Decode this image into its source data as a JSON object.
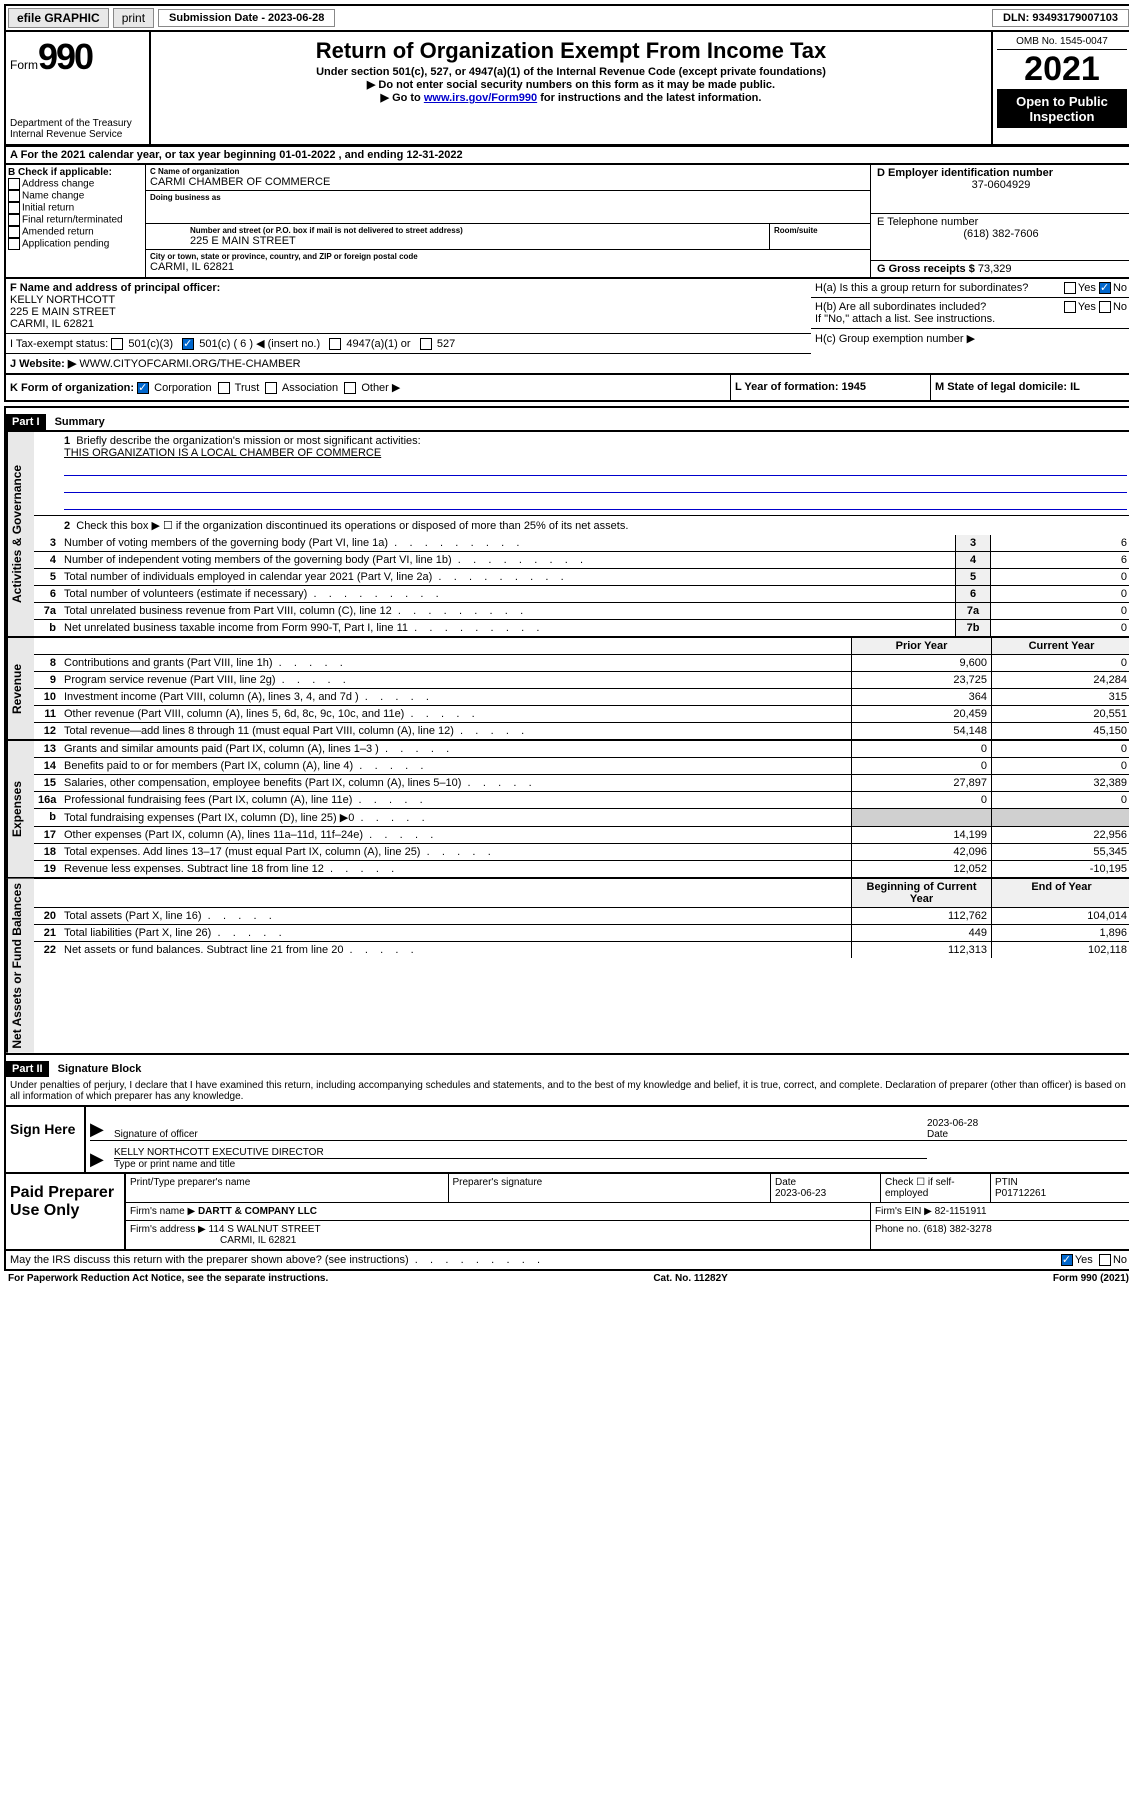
{
  "top_bar": {
    "efile": "efile GRAPHIC",
    "print": "print",
    "submission_label": "Submission Date - 2023-06-28",
    "dln_label": "DLN: 93493179007103"
  },
  "header": {
    "form_word": "Form",
    "form_num": "990",
    "title": "Return of Organization Exempt From Income Tax",
    "subtitle": "Under section 501(c), 527, or 4947(a)(1) of the Internal Revenue Code (except private foundations)",
    "note1": "▶ Do not enter social security numbers on this form as it may be made public.",
    "note2_pre": "▶ Go to ",
    "note2_link": "www.irs.gov/Form990",
    "note2_post": " for instructions and the latest information.",
    "dept1": "Department of the Treasury",
    "dept2": "Internal Revenue Service",
    "omb": "OMB No. 1545-0047",
    "year": "2021",
    "open": "Open to Public Inspection"
  },
  "line_a": "For the 2021 calendar year, or tax year beginning 01-01-2022   , and ending 12-31-2022",
  "section_b": {
    "label": "B Check if applicable:",
    "opts": [
      "Address change",
      "Name change",
      "Initial return",
      "Final return/terminated",
      "Amended return",
      "Application pending"
    ],
    "c_label": "C Name of organization",
    "c_name": "CARMI CHAMBER OF COMMERCE",
    "dba_label": "Doing business as",
    "addr_label": "Number and street (or P.O. box if mail is not delivered to street address)",
    "room_label": "Room/suite",
    "addr": "225 E MAIN STREET",
    "city_label": "City or town, state or province, country, and ZIP or foreign postal code",
    "city": "CARMI, IL  62821",
    "d_label": "D Employer identification number",
    "d_val": "37-0604929",
    "e_label": "E Telephone number",
    "e_val": "(618) 382-7606",
    "g_label": "G Gross receipts $",
    "g_val": "73,329"
  },
  "fij": {
    "f_label": "F  Name and address of principal officer:",
    "f_name": "KELLY NORTHCOTT",
    "f_addr1": "225 E MAIN STREET",
    "f_addr2": "CARMI, IL  62821",
    "i_label": "I  Tax-exempt status:",
    "i_501c3": "501(c)(3)",
    "i_501c": "501(c) ( 6 ) ◀ (insert no.)",
    "i_4947": "4947(a)(1) or",
    "i_527": "527",
    "j_label": "J  Website: ▶",
    "j_val": "WWW.CITYOFCARMI.ORG/THE-CHAMBER",
    "ha_label": "H(a)  Is this a group return for subordinates?",
    "hb_label": "H(b)  Are all subordinates included?",
    "hb_note": "If \"No,\" attach a list. See instructions.",
    "hc_label": "H(c)  Group exemption number ▶",
    "yes": "Yes",
    "no": "No"
  },
  "kl": {
    "k_label": "K Form of organization:",
    "k_corp": "Corporation",
    "k_trust": "Trust",
    "k_assoc": "Association",
    "k_other": "Other ▶",
    "l_label": "L Year of formation: 1945",
    "m_label": "M State of legal domicile: IL"
  },
  "part1": {
    "label": "Part I",
    "title": "Summary"
  },
  "gov": {
    "tab": "Activities & Governance",
    "l1": "Briefly describe the organization's mission or most significant activities:",
    "l1v": "THIS ORGANIZATION IS A LOCAL CHAMBER OF COMMERCE",
    "l2": "Check this box ▶ ☐  if the organization discontinued its operations or disposed of more than 25% of its net assets.",
    "rows": [
      {
        "n": "3",
        "t": "Number of voting members of the governing body (Part VI, line 1a)",
        "ln": "3",
        "v": "6"
      },
      {
        "n": "4",
        "t": "Number of independent voting members of the governing body (Part VI, line 1b)",
        "ln": "4",
        "v": "6"
      },
      {
        "n": "5",
        "t": "Total number of individuals employed in calendar year 2021 (Part V, line 2a)",
        "ln": "5",
        "v": "0"
      },
      {
        "n": "6",
        "t": "Total number of volunteers (estimate if necessary)",
        "ln": "6",
        "v": "0"
      },
      {
        "n": "7a",
        "t": "Total unrelated business revenue from Part VIII, column (C), line 12",
        "ln": "7a",
        "v": "0"
      },
      {
        "n": "b",
        "t": "Net unrelated business taxable income from Form 990-T, Part I, line 11",
        "ln": "7b",
        "v": "0"
      }
    ]
  },
  "cols": {
    "prior": "Prior Year",
    "curr": "Current Year",
    "boy": "Beginning of Current Year",
    "eoy": "End of Year"
  },
  "rev": {
    "tab": "Revenue",
    "rows": [
      {
        "n": "8",
        "t": "Contributions and grants (Part VIII, line 1h)",
        "p": "9,600",
        "c": "0"
      },
      {
        "n": "9",
        "t": "Program service revenue (Part VIII, line 2g)",
        "p": "23,725",
        "c": "24,284"
      },
      {
        "n": "10",
        "t": "Investment income (Part VIII, column (A), lines 3, 4, and 7d )",
        "p": "364",
        "c": "315"
      },
      {
        "n": "11",
        "t": "Other revenue (Part VIII, column (A), lines 5, 6d, 8c, 9c, 10c, and 11e)",
        "p": "20,459",
        "c": "20,551"
      },
      {
        "n": "12",
        "t": "Total revenue—add lines 8 through 11 (must equal Part VIII, column (A), line 12)",
        "p": "54,148",
        "c": "45,150"
      }
    ]
  },
  "exp": {
    "tab": "Expenses",
    "rows": [
      {
        "n": "13",
        "t": "Grants and similar amounts paid (Part IX, column (A), lines 1–3 )",
        "p": "0",
        "c": "0"
      },
      {
        "n": "14",
        "t": "Benefits paid to or for members (Part IX, column (A), line 4)",
        "p": "0",
        "c": "0"
      },
      {
        "n": "15",
        "t": "Salaries, other compensation, employee benefits (Part IX, column (A), lines 5–10)",
        "p": "27,897",
        "c": "32,389"
      },
      {
        "n": "16a",
        "t": "Professional fundraising fees (Part IX, column (A), line 11e)",
        "p": "0",
        "c": "0"
      },
      {
        "n": "b",
        "t": "Total fundraising expenses (Part IX, column (D), line 25) ▶0",
        "p": "",
        "c": "",
        "shade": true
      },
      {
        "n": "17",
        "t": "Other expenses (Part IX, column (A), lines 11a–11d, 11f–24e)",
        "p": "14,199",
        "c": "22,956"
      },
      {
        "n": "18",
        "t": "Total expenses. Add lines 13–17 (must equal Part IX, column (A), line 25)",
        "p": "42,096",
        "c": "55,345"
      },
      {
        "n": "19",
        "t": "Revenue less expenses. Subtract line 18 from line 12",
        "p": "12,052",
        "c": "-10,195"
      }
    ]
  },
  "net": {
    "tab": "Net Assets or Fund Balances",
    "rows": [
      {
        "n": "20",
        "t": "Total assets (Part X, line 16)",
        "p": "112,762",
        "c": "104,014"
      },
      {
        "n": "21",
        "t": "Total liabilities (Part X, line 26)",
        "p": "449",
        "c": "1,896"
      },
      {
        "n": "22",
        "t": "Net assets or fund balances. Subtract line 21 from line 20",
        "p": "112,313",
        "c": "102,118"
      }
    ]
  },
  "part2": {
    "label": "Part II",
    "title": "Signature Block"
  },
  "decl": "Under penalties of perjury, I declare that I have examined this return, including accompanying schedules and statements, and to the best of my knowledge and belief, it is true, correct, and complete. Declaration of preparer (other than officer) is based on all information of which preparer has any knowledge.",
  "sign": {
    "label": "Sign Here",
    "sig_label": "Signature of officer",
    "date": "2023-06-28",
    "date_label": "Date",
    "name": "KELLY NORTHCOTT  EXECUTIVE DIRECTOR",
    "name_label": "Type or print name and title"
  },
  "paid": {
    "label": "Paid Preparer Use Only",
    "h1": "Print/Type preparer's name",
    "h2": "Preparer's signature",
    "h3": "Date",
    "h3v": "2023-06-23",
    "h4": "Check ☐ if self-employed",
    "h5": "PTIN",
    "h5v": "P01712261",
    "firm_label": "Firm's name    ▶",
    "firm": "DARTT & COMPANY LLC",
    "ein_label": "Firm's EIN ▶",
    "ein": "82-1151911",
    "addr_label": "Firm's address ▶",
    "addr1": "114 S WALNUT STREET",
    "addr2": "CARMI, IL  62821",
    "phone_label": "Phone no.",
    "phone": "(618) 382-3278"
  },
  "bottom": {
    "q": "May the IRS discuss this return with the preparer shown above? (see instructions)",
    "yes": "Yes",
    "no": "No"
  },
  "footer": {
    "l": "For Paperwork Reduction Act Notice, see the separate instructions.",
    "m": "Cat. No. 11282Y",
    "r": "Form 990 (2021)"
  }
}
